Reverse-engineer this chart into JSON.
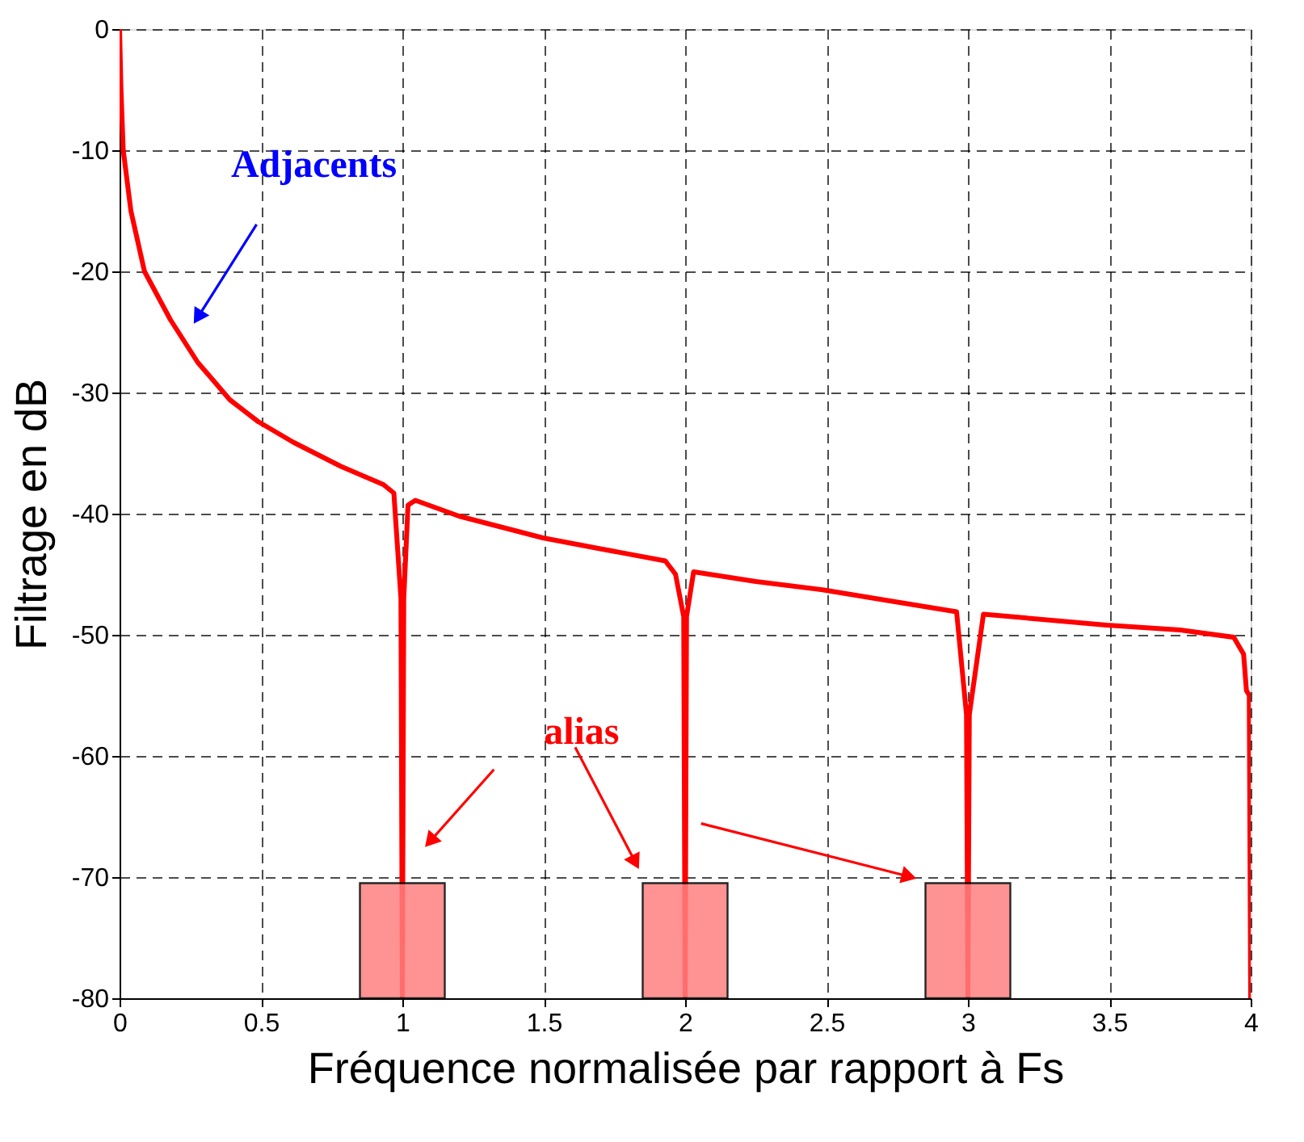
{
  "chart_data": {
    "type": "line",
    "xlabel": "Fréquence normalisée par rapport à Fs",
    "ylabel": "Filtrage en dB",
    "xlim": [
      0,
      4
    ],
    "ylim": [
      -80,
      0
    ],
    "xticks": [
      0,
      0.5,
      1,
      1.5,
      2,
      2.5,
      3,
      3.5,
      4
    ],
    "yticks": [
      -80,
      -70,
      -60,
      -50,
      -40,
      -30,
      -20,
      -10,
      0
    ],
    "grid": true,
    "line_style": "solid",
    "series": [
      {
        "color": "#ff0000",
        "x": [
          0,
          0.005,
          0.013,
          0.04,
          0.088,
          0.18,
          0.276,
          0.39,
          0.49,
          0.614,
          0.783,
          0.933,
          0.97,
          0.995,
          1.0,
          1.005,
          1.02,
          1.046,
          1.2,
          1.497,
          1.7,
          1.93,
          1.966,
          1.995,
          2.0,
          2.005,
          2.03,
          2.25,
          2.49,
          2.75,
          2.96,
          2.995,
          3.0,
          3.005,
          3.055,
          3.49,
          3.75,
          3.94,
          3.975,
          3.985,
          3.995,
          4.0
        ],
        "values": [
          0,
          -5,
          -10,
          -15,
          -20,
          -24,
          -27.5,
          -30.6,
          -32.4,
          -34.1,
          -36.1,
          -37.6,
          -38.3,
          -47,
          -80,
          -47,
          -39.3,
          -38.9,
          -40.2,
          -42,
          -42.9,
          -43.9,
          -45,
          -48.5,
          -80,
          -48.5,
          -44.8,
          -45.6,
          -46.3,
          -47.3,
          -48.1,
          -56.6,
          -80,
          -56.6,
          -48.3,
          -49.2,
          -49.6,
          -50.2,
          -51.6,
          -54.6,
          -55,
          -80
        ]
      },
      {
        "type": "bar",
        "color": "#ff8080",
        "x": [
          1,
          2,
          3
        ],
        "base": [
          -80,
          -80,
          -80
        ],
        "values": [
          9.5,
          9.5,
          9.5
        ]
      }
    ],
    "annotations": [
      "Adjacents",
      "alias"
    ]
  }
}
